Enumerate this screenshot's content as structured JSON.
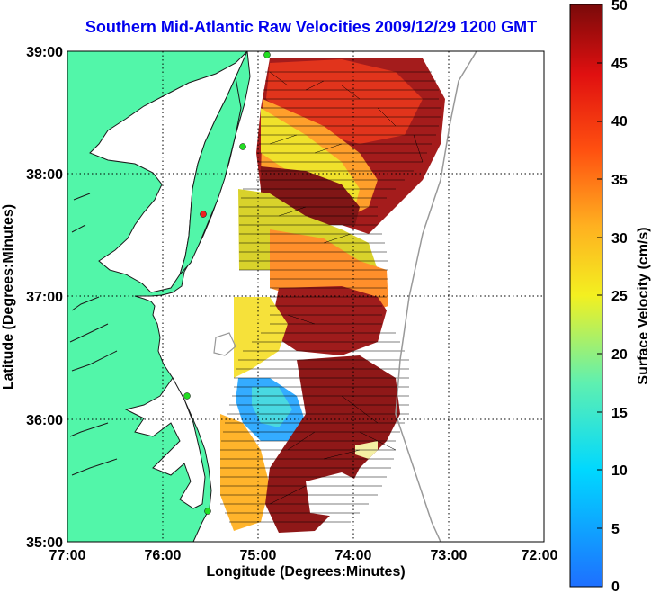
{
  "title": "Southern Mid-Atlantic Raw Velocities 2009/12/29 1200 GMT",
  "xaxis": {
    "label": "Longitude (Degrees:Minutes)",
    "ticks": [
      "77:00",
      "76:00",
      "75:00",
      "74:00",
      "73:00",
      "72:00"
    ]
  },
  "yaxis": {
    "label": "Latitude (Degrees:Minutes)",
    "ticks": [
      "39:00",
      "38:00",
      "37:00",
      "36:00",
      "35:00"
    ]
  },
  "colorbar": {
    "label": "Surface Velocity (cm/s)",
    "min": 0,
    "max": 50,
    "ticks": [
      "50",
      "45",
      "40",
      "35",
      "30",
      "25",
      "20",
      "15",
      "10",
      "5",
      "0"
    ]
  },
  "colors": {
    "land": "#52f6a9",
    "water": "#ffffff",
    "title": "#0000ee",
    "station_green": "#22dd22",
    "station_red": "#ee2222"
  },
  "map_data": {
    "region": "Southern Mid-Atlantic",
    "date": "2009/12/29",
    "time": "1200 GMT",
    "lon_range": [
      -77,
      -72
    ],
    "lat_range": [
      35,
      39
    ]
  }
}
